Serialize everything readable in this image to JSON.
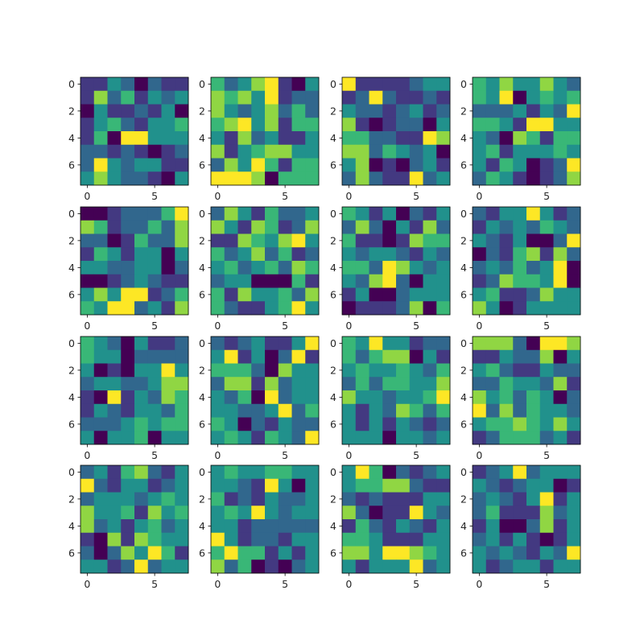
{
  "chart_data": {
    "type": "heatmap",
    "layout": "4x4 grid of subplots",
    "colormap": "viridis",
    "color_range": [
      0,
      6
    ],
    "matrix_size": [
      8,
      8
    ],
    "x_ticks": [
      0,
      5
    ],
    "y_ticks": [
      0,
      2,
      4,
      6
    ],
    "x_tick_labels": [
      "0",
      "5"
    ],
    "y_tick_labels": [
      "0",
      "2",
      "4",
      "6"
    ],
    "grid": false,
    "panels": [
      {
        "values": [
          [
            1,
            1,
            3,
            2,
            0,
            2,
            1,
            1
          ],
          [
            1,
            5,
            2,
            4,
            1,
            3,
            2,
            3
          ],
          [
            0,
            3,
            1,
            1,
            2,
            1,
            3,
            0
          ],
          [
            1,
            3,
            4,
            2,
            1,
            3,
            3,
            4
          ],
          [
            1,
            4,
            0,
            6,
            6,
            3,
            3,
            3
          ],
          [
            2,
            2,
            1,
            2,
            1,
            0,
            1,
            2
          ],
          [
            2,
            6,
            3,
            2,
            3,
            3,
            1,
            1
          ],
          [
            3,
            5,
            3,
            2,
            2,
            1,
            0,
            3
          ]
        ]
      },
      {
        "values": [
          [
            4,
            2,
            3,
            5,
            6,
            1,
            0,
            3
          ],
          [
            5,
            4,
            5,
            3,
            6,
            1,
            2,
            2
          ],
          [
            5,
            3,
            2,
            3,
            5,
            2,
            4,
            2
          ],
          [
            4,
            5,
            6,
            3,
            5,
            1,
            4,
            4
          ],
          [
            3,
            1,
            5,
            2,
            3,
            1,
            1,
            3
          ],
          [
            5,
            1,
            3,
            4,
            5,
            5,
            3,
            3
          ],
          [
            2,
            5,
            3,
            6,
            4,
            1,
            4,
            4
          ],
          [
            6,
            6,
            6,
            5,
            0,
            4,
            4,
            4
          ]
        ]
      },
      {
        "values": [
          [
            6,
            1,
            1,
            1,
            1,
            2,
            3,
            3
          ],
          [
            1,
            2,
            6,
            2,
            1,
            1,
            2,
            1
          ],
          [
            3,
            2,
            2,
            1,
            2,
            3,
            1,
            2
          ],
          [
            5,
            1,
            0,
            1,
            2,
            2,
            0,
            3
          ],
          [
            4,
            4,
            2,
            2,
            1,
            1,
            6,
            5
          ],
          [
            5,
            5,
            2,
            4,
            3,
            2,
            3,
            0
          ],
          [
            3,
            5,
            0,
            1,
            0,
            2,
            3,
            1
          ],
          [
            2,
            5,
            2,
            1,
            1,
            6,
            2,
            3
          ]
        ]
      },
      {
        "values": [
          [
            4,
            3,
            5,
            3,
            3,
            5,
            3,
            2
          ],
          [
            4,
            3,
            6,
            0,
            3,
            4,
            3,
            4
          ],
          [
            2,
            2,
            2,
            3,
            1,
            3,
            2,
            6
          ],
          [
            4,
            4,
            3,
            1,
            6,
            6,
            3,
            3
          ],
          [
            3,
            2,
            0,
            5,
            4,
            1,
            4,
            4
          ],
          [
            3,
            4,
            1,
            3,
            3,
            3,
            4,
            3
          ],
          [
            3,
            1,
            4,
            3,
            0,
            1,
            2,
            6
          ],
          [
            2,
            4,
            3,
            1,
            0,
            1,
            2,
            5
          ]
        ]
      },
      {
        "values": [
          [
            0,
            0,
            1,
            2,
            2,
            2,
            4,
            6
          ],
          [
            5,
            4,
            1,
            2,
            2,
            4,
            2,
            5
          ],
          [
            2,
            2,
            0,
            1,
            4,
            2,
            2,
            5
          ],
          [
            1,
            4,
            3,
            1,
            3,
            3,
            0,
            3
          ],
          [
            3,
            3,
            2,
            2,
            3,
            3,
            0,
            2
          ],
          [
            0,
            0,
            1,
            2,
            3,
            2,
            1,
            1
          ],
          [
            3,
            5,
            3,
            6,
            6,
            1,
            2,
            4
          ],
          [
            4,
            3,
            6,
            6,
            2,
            3,
            1,
            5
          ]
        ]
      },
      {
        "values": [
          [
            2,
            5,
            3,
            1,
            4,
            2,
            2,
            3
          ],
          [
            5,
            3,
            1,
            5,
            4,
            1,
            2,
            5
          ],
          [
            1,
            1,
            5,
            4,
            3,
            5,
            6,
            3
          ],
          [
            4,
            2,
            3,
            5,
            2,
            4,
            1,
            2
          ],
          [
            3,
            4,
            2,
            3,
            4,
            2,
            5,
            4
          ],
          [
            2,
            3,
            3,
            0,
            0,
            0,
            4,
            1
          ],
          [
            4,
            1,
            5,
            3,
            3,
            4,
            2,
            5
          ],
          [
            4,
            2,
            1,
            1,
            3,
            4,
            6,
            3
          ]
        ]
      },
      {
        "values": [
          [
            4,
            3,
            1,
            3,
            0,
            2,
            1,
            3
          ],
          [
            2,
            5,
            2,
            0,
            3,
            1,
            5,
            2
          ],
          [
            4,
            1,
            1,
            0,
            1,
            5,
            4,
            4
          ],
          [
            3,
            2,
            3,
            3,
            2,
            1,
            3,
            2
          ],
          [
            4,
            4,
            2,
            6,
            5,
            3,
            2,
            3
          ],
          [
            3,
            2,
            5,
            6,
            2,
            0,
            3,
            3
          ],
          [
            1,
            3,
            0,
            0,
            2,
            3,
            3,
            3
          ],
          [
            0,
            1,
            1,
            1,
            2,
            5,
            0,
            4
          ]
        ]
      },
      {
        "values": [
          [
            2,
            1,
            3,
            3,
            6,
            3,
            1,
            2
          ],
          [
            1,
            3,
            2,
            3,
            2,
            4,
            3,
            2
          ],
          [
            3,
            2,
            1,
            3,
            0,
            0,
            2,
            6
          ],
          [
            0,
            2,
            1,
            4,
            5,
            1,
            5,
            2
          ],
          [
            2,
            3,
            2,
            4,
            2,
            3,
            6,
            0
          ],
          [
            1,
            2,
            5,
            4,
            4,
            3,
            6,
            0
          ],
          [
            3,
            4,
            1,
            1,
            2,
            5,
            3,
            3
          ],
          [
            5,
            3,
            0,
            1,
            3,
            3,
            3,
            3
          ]
        ]
      },
      {
        "values": [
          [
            4,
            3,
            2,
            0,
            3,
            1,
            1,
            2
          ],
          [
            4,
            3,
            3,
            0,
            2,
            2,
            2,
            2
          ],
          [
            3,
            0,
            1,
            0,
            3,
            3,
            6,
            3
          ],
          [
            2,
            3,
            3,
            2,
            2,
            3,
            5,
            5
          ],
          [
            1,
            0,
            6,
            1,
            3,
            2,
            5,
            4
          ],
          [
            1,
            3,
            2,
            1,
            3,
            3,
            2,
            4
          ],
          [
            2,
            2,
            2,
            3,
            4,
            3,
            4,
            4
          ],
          [
            3,
            0,
            3,
            3,
            4,
            0,
            3,
            3
          ]
        ]
      },
      {
        "values": [
          [
            2,
            1,
            2,
            3,
            1,
            1,
            3,
            6
          ],
          [
            3,
            6,
            1,
            3,
            0,
            2,
            6,
            1
          ],
          [
            4,
            4,
            4,
            2,
            0,
            5,
            3,
            3
          ],
          [
            2,
            5,
            5,
            1,
            5,
            2,
            3,
            3
          ],
          [
            3,
            2,
            4,
            0,
            6,
            2,
            3,
            3
          ],
          [
            3,
            3,
            2,
            2,
            3,
            6,
            2,
            4
          ],
          [
            4,
            3,
            0,
            2,
            1,
            3,
            2,
            2
          ],
          [
            3,
            4,
            3,
            1,
            4,
            3,
            2,
            6
          ]
        ]
      },
      {
        "values": [
          [
            4,
            3,
            6,
            3,
            3,
            1,
            2,
            2
          ],
          [
            4,
            2,
            4,
            5,
            5,
            0,
            3,
            1
          ],
          [
            3,
            4,
            3,
            3,
            4,
            3,
            2,
            4
          ],
          [
            2,
            4,
            2,
            4,
            4,
            3,
            3,
            5
          ],
          [
            5,
            3,
            3,
            2,
            3,
            3,
            4,
            6
          ],
          [
            3,
            1,
            3,
            2,
            5,
            4,
            2,
            4
          ],
          [
            3,
            1,
            3,
            1,
            3,
            2,
            1,
            2
          ],
          [
            3,
            3,
            3,
            0,
            3,
            3,
            2,
            3
          ]
        ]
      },
      {
        "values": [
          [
            5,
            5,
            5,
            2,
            0,
            6,
            6,
            5
          ],
          [
            1,
            1,
            3,
            2,
            2,
            5,
            0,
            3
          ],
          [
            3,
            4,
            2,
            1,
            1,
            3,
            2,
            2
          ],
          [
            2,
            2,
            4,
            3,
            3,
            2,
            5,
            1
          ],
          [
            5,
            3,
            4,
            2,
            4,
            3,
            0,
            2
          ],
          [
            6,
            2,
            5,
            2,
            4,
            3,
            3,
            2
          ],
          [
            3,
            4,
            4,
            5,
            4,
            3,
            5,
            3
          ],
          [
            1,
            2,
            4,
            4,
            4,
            2,
            3,
            1
          ]
        ]
      },
      {
        "values": [
          [
            2,
            3,
            1,
            4,
            5,
            2,
            1,
            3
          ],
          [
            6,
            2,
            1,
            3,
            3,
            1,
            2,
            3
          ],
          [
            2,
            3,
            3,
            3,
            2,
            3,
            4,
            3
          ],
          [
            5,
            3,
            3,
            4,
            1,
            5,
            3,
            4
          ],
          [
            5,
            2,
            3,
            1,
            3,
            4,
            2,
            3
          ],
          [
            1,
            0,
            5,
            1,
            5,
            4,
            3,
            3
          ],
          [
            2,
            0,
            2,
            5,
            3,
            6,
            4,
            1
          ],
          [
            3,
            3,
            1,
            2,
            6,
            2,
            3,
            3
          ]
        ]
      },
      {
        "values": [
          [
            3,
            4,
            3,
            3,
            4,
            4,
            3,
            3
          ],
          [
            3,
            3,
            2,
            1,
            6,
            3,
            0,
            3
          ],
          [
            4,
            1,
            2,
            1,
            3,
            2,
            2,
            3
          ],
          [
            3,
            4,
            3,
            6,
            3,
            2,
            3,
            3
          ],
          [
            3,
            3,
            1,
            2,
            2,
            2,
            2,
            2
          ],
          [
            6,
            3,
            1,
            2,
            2,
            1,
            3,
            3
          ],
          [
            4,
            6,
            4,
            4,
            1,
            3,
            1,
            3
          ],
          [
            5,
            2,
            4,
            0,
            1,
            0,
            2,
            3
          ]
        ]
      },
      {
        "values": [
          [
            3,
            6,
            4,
            0,
            2,
            1,
            2,
            3
          ],
          [
            3,
            4,
            4,
            5,
            5,
            2,
            1,
            1
          ],
          [
            2,
            1,
            2,
            1,
            1,
            1,
            3,
            3
          ],
          [
            5,
            2,
            0,
            1,
            1,
            6,
            3,
            2
          ],
          [
            1,
            4,
            2,
            1,
            3,
            2,
            1,
            3
          ],
          [
            4,
            4,
            3,
            1,
            1,
            1,
            3,
            3
          ],
          [
            5,
            5,
            3,
            6,
            6,
            5,
            4,
            3
          ],
          [
            3,
            1,
            3,
            3,
            3,
            6,
            2,
            3
          ]
        ]
      },
      {
        "values": [
          [
            1,
            2,
            3,
            6,
            2,
            3,
            3,
            3
          ],
          [
            3,
            2,
            1,
            2,
            3,
            3,
            0,
            1
          ],
          [
            2,
            3,
            2,
            1,
            3,
            6,
            1,
            3
          ],
          [
            2,
            4,
            1,
            1,
            1,
            5,
            2,
            3
          ],
          [
            1,
            3,
            0,
            0,
            2,
            5,
            1,
            3
          ],
          [
            2,
            3,
            1,
            3,
            1,
            0,
            1,
            3
          ],
          [
            3,
            2,
            3,
            2,
            1,
            3,
            2,
            6
          ],
          [
            3,
            1,
            2,
            3,
            3,
            1,
            3,
            3
          ]
        ]
      }
    ]
  }
}
